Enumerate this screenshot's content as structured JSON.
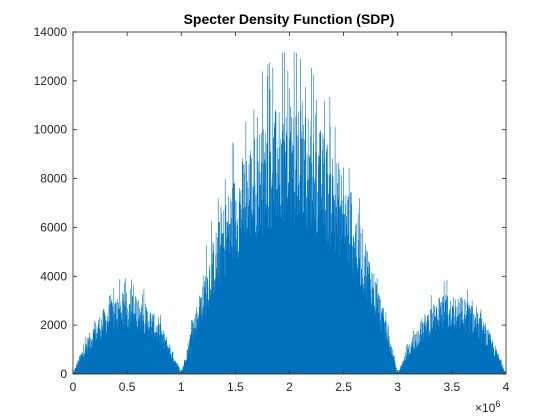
{
  "chart_data": {
    "type": "bar",
    "title": "Specter Density Function (SDP)",
    "xlabel": "",
    "ylabel": "",
    "xlim": [
      0,
      4000000
    ],
    "ylim": [
      0,
      14000
    ],
    "x_ticks": [
      0,
      500000,
      1000000,
      1500000,
      2000000,
      2500000,
      3000000,
      3500000,
      4000000
    ],
    "x_tick_labels": [
      "0",
      "0.5",
      "1",
      "1.5",
      "2",
      "2.5",
      "3",
      "3.5",
      "4"
    ],
    "x_exponent_base": "×10",
    "x_exponent_power": "6",
    "y_ticks": [
      0,
      2000,
      4000,
      6000,
      8000,
      10000,
      12000,
      14000
    ],
    "y_tick_labels": [
      "0",
      "2000",
      "4000",
      "6000",
      "8000",
      "10000",
      "12000",
      "14000"
    ],
    "grid": false,
    "box": true,
    "series": [
      {
        "color": "#0072BD",
        "lobes": [
          {
            "x_start": 0,
            "x_end": 1000000,
            "peak_x": 500000,
            "peak_y": 3300,
            "max_spike": 4200
          },
          {
            "x_start": 1000000,
            "x_end": 3000000,
            "peak_x": 2000000,
            "peak_y": 11000,
            "max_spike": 13400
          },
          {
            "x_start": 3000000,
            "x_end": 4000000,
            "peak_x": 3500000,
            "peak_y": 3300,
            "max_spike": 4200
          }
        ]
      }
    ]
  }
}
